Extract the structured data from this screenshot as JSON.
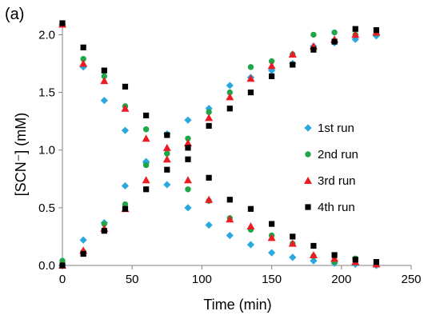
{
  "panel_label": "(a)",
  "colors": {
    "run1": "#29a9e0",
    "run2": "#1fa64a",
    "run3": "#ec1c24",
    "run4": "#000000",
    "axis": "#808080"
  },
  "chart_data": {
    "type": "scatter",
    "xlabel": "Time (min)",
    "ylabel": "[SCN⁻] (mM)",
    "xlim": [
      0,
      250
    ],
    "ylim": [
      0,
      2.1
    ],
    "xticks": [
      0,
      50,
      100,
      150,
      200,
      250
    ],
    "yticks": [
      0.0,
      0.5,
      1.0,
      1.5,
      2.0
    ],
    "xtick_labels": [
      "0",
      "50",
      "100",
      "150",
      "200",
      "250"
    ],
    "ytick_labels": [
      "0.0",
      "0.5",
      "1.0",
      "1.5",
      "2.0"
    ],
    "grid": false,
    "legend_position": "right",
    "series": [
      {
        "name": "1st run",
        "marker": "diamond",
        "color_key": "run1",
        "decreasing": {
          "x": [
            0,
            15,
            30,
            45,
            60,
            75,
            90,
            105,
            120,
            135,
            150,
            165,
            180,
            195,
            210,
            225
          ],
          "y": [
            2.09,
            1.72,
            1.43,
            1.17,
            0.9,
            0.7,
            0.5,
            0.35,
            0.26,
            0.18,
            0.11,
            0.07,
            0.04,
            0.02,
            0.01,
            0.0
          ]
        },
        "increasing": {
          "x": [
            0,
            15,
            30,
            45,
            60,
            75,
            90,
            105,
            120,
            135,
            150,
            165,
            180,
            195,
            210,
            225
          ],
          "y": [
            0.0,
            0.22,
            0.37,
            0.69,
            0.89,
            1.14,
            1.26,
            1.36,
            1.56,
            1.63,
            1.69,
            1.75,
            1.9,
            1.93,
            1.96,
            1.99
          ]
        }
      },
      {
        "name": "2nd run",
        "marker": "circle",
        "color_key": "run2",
        "decreasing": {
          "x": [
            0,
            15,
            30,
            45,
            60,
            75,
            90,
            105,
            120,
            135,
            150,
            165,
            180,
            195,
            210,
            225
          ],
          "y": [
            2.09,
            1.79,
            1.64,
            1.38,
            1.18,
            0.97,
            0.66,
            0.56,
            0.41,
            0.31,
            0.26,
            0.19,
            0.08,
            0.03,
            0.06,
            0.01
          ]
        },
        "increasing": {
          "x": [
            0,
            15,
            30,
            45,
            60,
            75,
            90,
            105,
            120,
            135,
            150,
            165,
            180,
            195,
            210,
            225
          ],
          "y": [
            0.04,
            0.12,
            0.36,
            0.53,
            0.87,
            0.97,
            1.1,
            1.33,
            1.5,
            1.72,
            1.77,
            1.83,
            2.0,
            2.02,
            2.0,
            2.01
          ]
        }
      },
      {
        "name": "3rd run",
        "marker": "triangle",
        "color_key": "run3",
        "decreasing": {
          "x": [
            0,
            15,
            30,
            45,
            60,
            75,
            90,
            105,
            120,
            135,
            150,
            165,
            180,
            195,
            210,
            225
          ],
          "y": [
            2.09,
            1.75,
            1.6,
            1.36,
            1.1,
            1.02,
            0.74,
            0.57,
            0.4,
            0.34,
            0.24,
            0.19,
            0.09,
            0.06,
            0.03,
            0.01
          ]
        },
        "increasing": {
          "x": [
            0,
            15,
            30,
            45,
            60,
            75,
            90,
            105,
            120,
            135,
            150,
            165,
            180,
            195,
            210,
            225
          ],
          "y": [
            0.0,
            0.13,
            0.32,
            0.49,
            0.74,
            0.92,
            1.06,
            1.28,
            1.46,
            1.62,
            1.73,
            1.83,
            1.9,
            1.96,
            2.0,
            2.02
          ]
        }
      },
      {
        "name": "4th run",
        "marker": "square",
        "color_key": "run4",
        "decreasing": {
          "x": [
            0,
            15,
            30,
            45,
            60,
            75,
            90,
            105,
            120,
            135,
            150,
            165,
            180,
            195,
            210,
            225
          ],
          "y": [
            2.1,
            1.89,
            1.69,
            1.55,
            1.3,
            1.13,
            0.92,
            0.76,
            0.57,
            0.49,
            0.36,
            0.25,
            0.17,
            0.09,
            0.05,
            0.03
          ]
        },
        "increasing": {
          "x": [
            0,
            15,
            30,
            45,
            60,
            75,
            90,
            105,
            120,
            135,
            150,
            165,
            180,
            195,
            210,
            225
          ],
          "y": [
            0.0,
            0.1,
            0.3,
            0.49,
            0.66,
            0.83,
            1.02,
            1.21,
            1.36,
            1.5,
            1.64,
            1.74,
            1.87,
            1.94,
            2.05,
            2.04
          ]
        }
      }
    ]
  }
}
